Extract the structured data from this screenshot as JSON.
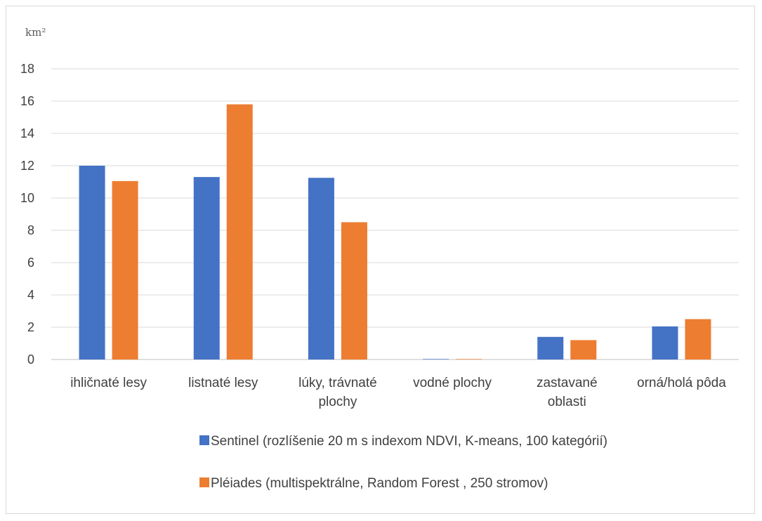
{
  "chart_data": {
    "type": "bar",
    "unit_label": "km²",
    "categories": [
      [
        "ihličnaté lesy"
      ],
      [
        "listnaté lesy"
      ],
      [
        "lúky, trávnaté",
        "plochy"
      ],
      [
        "vodné plochy"
      ],
      [
        "zastavané",
        "oblasti"
      ],
      [
        "orná/holá pôda"
      ]
    ],
    "series": [
      {
        "name": "Sentinel (rozlíšenie 20 m s indexom NDVI, K-means, 100 kategórií)",
        "color": "#4472C4",
        "values": [
          12.0,
          11.3,
          11.25,
          0.03,
          1.4,
          2.05
        ]
      },
      {
        "name": "Pléiades (multispektrálne, Random Forest , 250 stromov)",
        "color": "#ED7D31",
        "values": [
          11.05,
          15.8,
          8.5,
          0.03,
          1.2,
          2.5
        ]
      }
    ],
    "ylim": [
      0,
      18
    ],
    "yticks": [
      0,
      2,
      4,
      6,
      8,
      10,
      12,
      14,
      16,
      18
    ],
    "grid": true,
    "legend_position": "bottom"
  }
}
